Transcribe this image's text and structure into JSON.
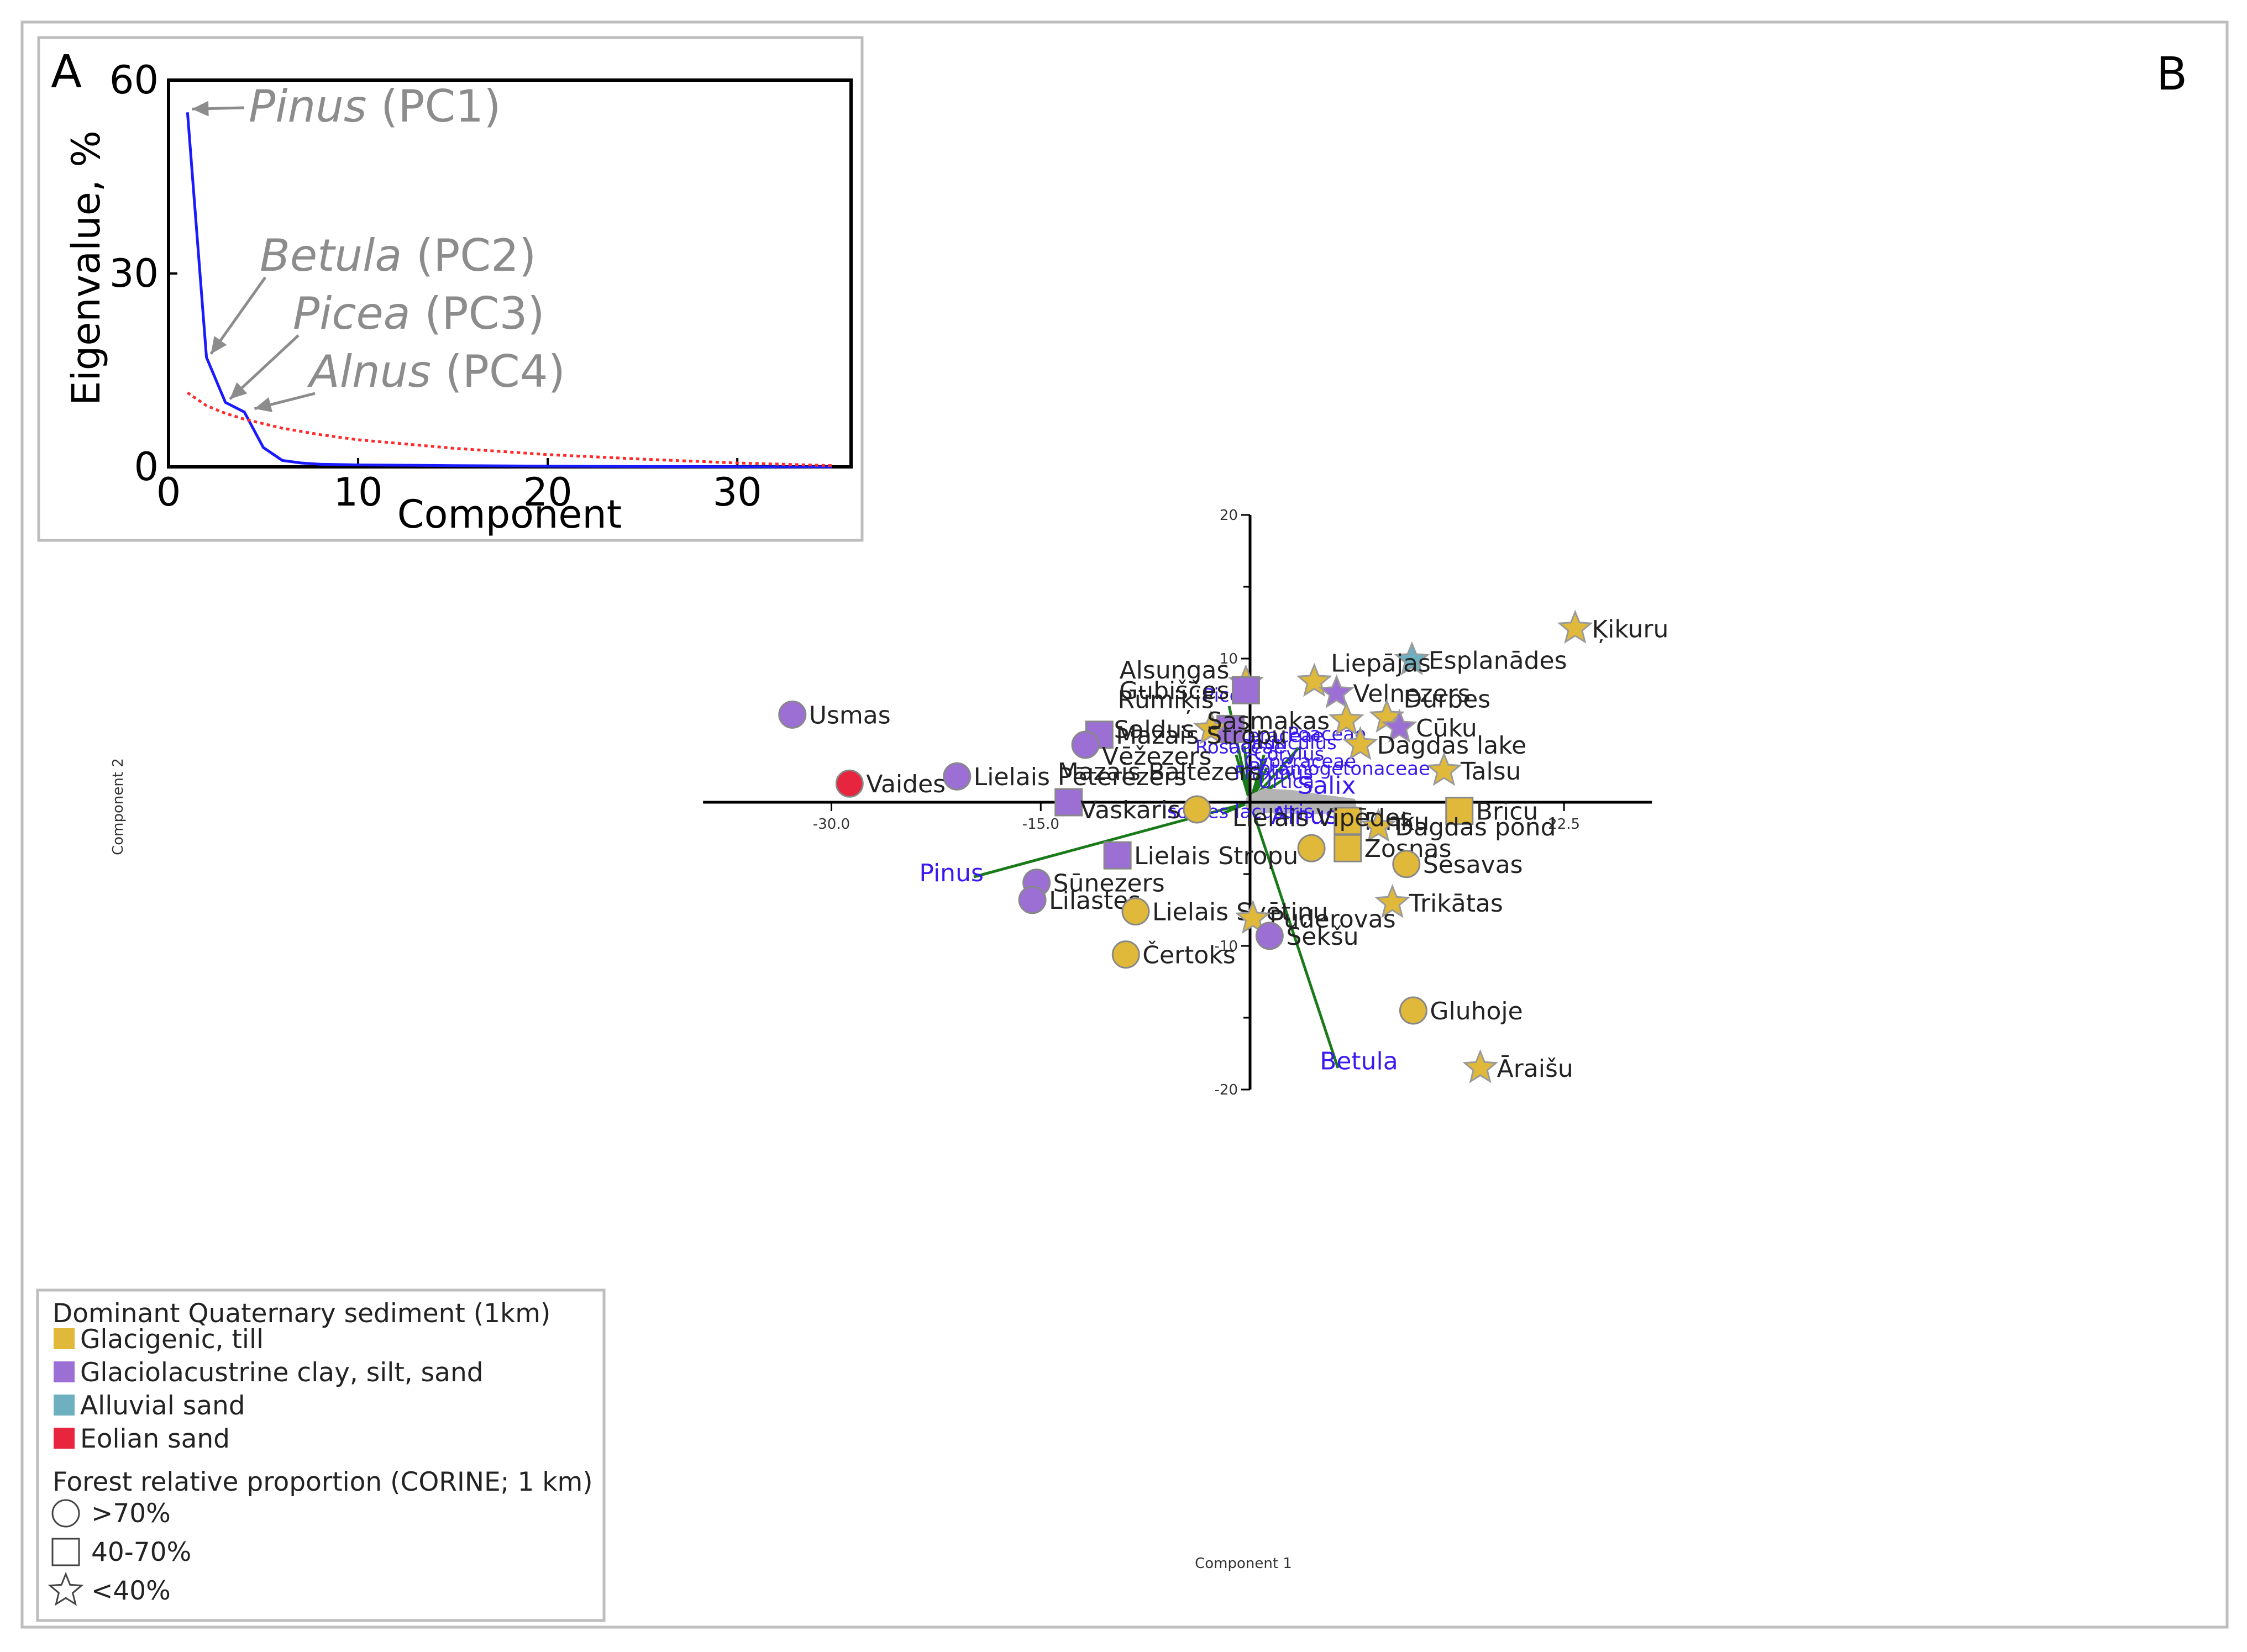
{
  "colors": {
    "glacigenic": "#e0b83a",
    "glaciolacustrine": "#9b6fd3",
    "alluvial": "#6fb0c0",
    "eolian": "#e8253e",
    "axis": "#000000",
    "loading": "#1a7a1a",
    "taxon": "#3a1af0",
    "eigen": "#1a1aff",
    "broken_stick": "#ff2a2a",
    "annot": "#8c8c8c",
    "cloud": "#b3b3b3"
  },
  "chart_data": [
    {
      "panel": "A",
      "type": "line",
      "xlabel": "Component",
      "ylabel": "Eigenvalue, %",
      "xlim": [
        0,
        36
      ],
      "ylim": [
        0,
        60
      ],
      "xticks": [
        "0",
        "10",
        "20",
        "30"
      ],
      "yticks": [
        "0",
        "30",
        "60"
      ],
      "series": [
        {
          "name": "eigenvalue",
          "style": "solid",
          "x": [
            1,
            2,
            3,
            4,
            5,
            6,
            7,
            8,
            10,
            15,
            20,
            25,
            30,
            35
          ],
          "y": [
            55,
            17,
            10,
            8.5,
            3,
            1,
            0.6,
            0.4,
            0.3,
            0.2,
            0.1,
            0.05,
            0.02,
            0
          ]
        },
        {
          "name": "broken stick",
          "style": "dotted",
          "x": [
            1,
            2,
            3,
            4,
            6,
            8,
            10,
            15,
            20,
            25,
            30,
            35
          ],
          "y": [
            11.5,
            9.5,
            8.3,
            7.4,
            6.0,
            5.0,
            4.2,
            2.9,
            1.9,
            1.2,
            0.6,
            0.2
          ]
        }
      ],
      "annotations": [
        {
          "taxon": "Pinus",
          "pc": "(PC1)",
          "x": 1,
          "y": 55
        },
        {
          "taxon": "Betula",
          "pc": "(PC2)",
          "x": 2,
          "y": 17
        },
        {
          "taxon": "Picea",
          "pc": "(PC3)",
          "x": 3,
          "y": 10
        },
        {
          "taxon": "Alnus",
          "pc": "(PC4)",
          "x": 4.3,
          "y": 8.5
        }
      ]
    },
    {
      "panel": "B",
      "type": "scatter",
      "xlabel": "Component 1",
      "ylabel": "Component 2",
      "xlim": [
        -40,
        30
      ],
      "ylim": [
        -20,
        20
      ],
      "xticks": [
        -30.0,
        -15.0,
        22.5
      ],
      "xtick_labels": [
        "-30.0",
        "-15.0",
        "22.5"
      ],
      "yticks": [
        20,
        10,
        -10,
        -20
      ],
      "ytick_labels": [
        "20",
        "10",
        "-10",
        "-20"
      ],
      "loadings": [
        {
          "name": "Pinus",
          "x": -19.8,
          "y": -5.2
        },
        {
          "name": "Betula",
          "x": 6.3,
          "y": -18.5
        },
        {
          "name": "Picea",
          "x": -1.5,
          "y": 6.7
        },
        {
          "name": "Asteraceae",
          "x": -0.4,
          "y": 3.9
        },
        {
          "name": "Rosaceae",
          "x": -1.0,
          "y": 3.3
        },
        {
          "name": "Poaceae",
          "x": 3.5,
          "y": 3.8
        },
        {
          "name": "Ranunculus",
          "x": 1.0,
          "y": 3.3
        },
        {
          "name": "Corylus",
          "x": 1.1,
          "y": 2.9
        },
        {
          "name": "Cyperaceae",
          "x": 1.2,
          "y": 2.4
        },
        {
          "name": "Potamogetonaceae",
          "x": 3.0,
          "y": 2.0
        },
        {
          "name": "Fraxinus",
          "x": 1.0,
          "y": 1.7
        },
        {
          "name": "Urtica",
          "x": 1.7,
          "y": 1.2
        },
        {
          "name": "Salix",
          "x": 5.0,
          "y": 0.3
        },
        {
          "name": "Alnus",
          "x": 2.8,
          "y": -1.1
        },
        {
          "name": "Isoetes lacustris",
          "x": -2.0,
          "y": -0.8
        }
      ],
      "loading_labels": [
        {
          "name": "Pinus",
          "x": -21.4,
          "y": -5.5
        },
        {
          "name": "Betula",
          "x": 7.8,
          "y": -18.6
        },
        {
          "name": "Picea",
          "x": -1.6,
          "y": 7.0
        },
        {
          "name": "Asteraceae",
          "x": 1.5,
          "y": 4.2
        },
        {
          "name": "Rosaceae",
          "x": -0.7,
          "y": 3.4
        },
        {
          "name": "Poaceae",
          "x": 5.5,
          "y": 4.3
        },
        {
          "name": "Ranunculus",
          "x": 2.3,
          "y": 3.7
        },
        {
          "name": "Corylus",
          "x": 2.8,
          "y": 2.9
        },
        {
          "name": "Cyperaceae",
          "x": 3.6,
          "y": 2.4
        },
        {
          "name": "Potamogetonaceae",
          "x": 6.4,
          "y": 1.9
        },
        {
          "name": "Fraxinus",
          "x": 1.7,
          "y": 1.6
        },
        {
          "name": "Urtica",
          "x": 2.6,
          "y": 1.0
        },
        {
          "name": "Salix",
          "x": 5.5,
          "y": 0.6
        },
        {
          "name": "Alnus",
          "x": 3.9,
          "y": -1.5
        },
        {
          "name": "Isoetes lacustris",
          "x": -0.9,
          "y": -1.1
        }
      ],
      "points": [
        {
          "name": "Ķikuru",
          "x": 23.3,
          "y": 12.1,
          "sediment": "glacigenic",
          "forest": "<40%"
        },
        {
          "name": "Esplanādes",
          "x": 11.6,
          "y": 9.9,
          "sediment": "alluvial",
          "forest": "<40%"
        },
        {
          "name": "Alsungas",
          "x": -0.3,
          "y": 8.3,
          "sediment": "glacigenic",
          "forest": "<40%"
        },
        {
          "name": "Liepājas",
          "x": 4.6,
          "y": 8.4,
          "sediment": "glacigenic",
          "forest": "<40%"
        },
        {
          "name": "Gubiščes",
          "x": -0.3,
          "y": 7.8,
          "sediment": "glaciolacustrine",
          "forest": "40-70%"
        },
        {
          "name": "Velnezers",
          "x": 6.2,
          "y": 7.6,
          "sediment": "glaciolacustrine",
          "forest": "<40%"
        },
        {
          "name": "Usmas",
          "x": -32.8,
          "y": 6.1,
          "sediment": "glaciolacustrine",
          "forest": ">70%"
        },
        {
          "name": "Rūmiķis",
          "x": -1.4,
          "y": 5.1,
          "sediment": "glaciolacustrine",
          "forest": "40-70%"
        },
        {
          "name": "Saldus",
          "x": -2.8,
          "y": 5.1,
          "sediment": "glacigenic",
          "forest": "<40%"
        },
        {
          "name": "Sasmakas",
          "x": 6.9,
          "y": 5.7,
          "sediment": "glacigenic",
          "forest": "<40%"
        },
        {
          "name": "Durbes",
          "x": 9.8,
          "y": 5.9,
          "sediment": "glacigenic",
          "forest": "<40%"
        },
        {
          "name": "Cūku",
          "x": 10.7,
          "y": 5.2,
          "sediment": "glaciolacustrine",
          "forest": "<40%"
        },
        {
          "name": "Mazais Stropu",
          "x": -10.8,
          "y": 4.7,
          "sediment": "glaciolacustrine",
          "forest": "40-70%"
        },
        {
          "name": "Vēžezers",
          "x": -11.8,
          "y": 4.0,
          "sediment": "glaciolacustrine",
          "forest": ">70%"
        },
        {
          "name": "Dagdas lake",
          "x": 7.9,
          "y": 4.0,
          "sediment": "glacigenic",
          "forest": "<40%"
        },
        {
          "name": "Talsu",
          "x": 13.9,
          "y": 2.2,
          "sediment": "glacigenic",
          "forest": "<40%"
        },
        {
          "name": "Lielais Pēterezers",
          "x": -21.0,
          "y": 1.8,
          "sediment": "glaciolacustrine",
          "forest": ">70%"
        },
        {
          "name": "Vaides",
          "x": -28.7,
          "y": 1.3,
          "sediment": "eolian",
          "forest": ">70%"
        },
        {
          "name": "Mazais Baltezers",
          "x": -13.0,
          "y": 0.0,
          "sediment": "glaciolacustrine",
          "forest": "40-70%"
        },
        {
          "name": "Vaskaris",
          "x": -3.8,
          "y": -0.5,
          "sediment": "glacigenic",
          "forest": ">70%"
        },
        {
          "name": "Bricu",
          "x": 15.0,
          "y": -0.6,
          "sediment": "glacigenic",
          "forest": "40-70%"
        },
        {
          "name": "Pinku",
          "x": 7.0,
          "y": -1.3,
          "sediment": "glacigenic",
          "forest": "40-70%"
        },
        {
          "name": "Dagdas pond",
          "x": 9.2,
          "y": -1.7,
          "sediment": "glacigenic",
          "forest": "<40%"
        },
        {
          "name": "Lielais Vipēdes",
          "x": 4.4,
          "y": -3.2,
          "sediment": "glacigenic",
          "forest": ">70%"
        },
        {
          "name": "Zosnas",
          "x": 7.0,
          "y": -3.2,
          "sediment": "glacigenic",
          "forest": "40-70%"
        },
        {
          "name": "Sesavas",
          "x": 11.2,
          "y": -4.3,
          "sediment": "glacigenic",
          "forest": ">70%"
        },
        {
          "name": "Lielais Stropu",
          "x": -9.5,
          "y": -3.7,
          "sediment": "glaciolacustrine",
          "forest": "40-70%"
        },
        {
          "name": "Sūnezers",
          "x": -15.3,
          "y": -5.6,
          "sediment": "glaciolacustrine",
          "forest": ">70%"
        },
        {
          "name": "Lilastes",
          "x": -15.6,
          "y": -6.8,
          "sediment": "glaciolacustrine",
          "forest": ">70%"
        },
        {
          "name": "Trikātas",
          "x": 10.2,
          "y": -7.0,
          "sediment": "glacigenic",
          "forest": "<40%"
        },
        {
          "name": "Lielais Svētiņu",
          "x": -8.2,
          "y": -7.6,
          "sediment": "glacigenic",
          "forest": ">70%"
        },
        {
          "name": "Puderovas",
          "x": 0.2,
          "y": -8.1,
          "sediment": "glacigenic",
          "forest": "<40%"
        },
        {
          "name": "Sekšu",
          "x": 1.4,
          "y": -9.3,
          "sediment": "glaciolacustrine",
          "forest": ">70%"
        },
        {
          "name": "Čertoks",
          "x": -8.9,
          "y": -10.6,
          "sediment": "glacigenic",
          "forest": ">70%"
        },
        {
          "name": "Gluhoje",
          "x": 11.7,
          "y": -14.5,
          "sediment": "glacigenic",
          "forest": ">70%"
        },
        {
          "name": "Āraišu",
          "x": 16.5,
          "y": -18.5,
          "sediment": "glacigenic",
          "forest": "<40%"
        }
      ]
    }
  ],
  "legend": {
    "title_sediment": "Dominant Quaternary sediment (1km)",
    "sediments": [
      {
        "key": "glacigenic",
        "label": "Glacigenic, till"
      },
      {
        "key": "glaciolacustrine",
        "label": "Glaciolacustrine clay, silt, sand"
      },
      {
        "key": "alluvial",
        "label": "Alluvial sand"
      },
      {
        "key": "eolian",
        "label": "Eolian sand"
      }
    ],
    "title_forest": "Forest relative proportion (CORINE; 1 km)",
    "forest": [
      {
        "shape": "circle",
        "label": ">70%"
      },
      {
        "shape": "square",
        "label": "40-70%"
      },
      {
        "shape": "star",
        "label": "<40%"
      }
    ]
  }
}
